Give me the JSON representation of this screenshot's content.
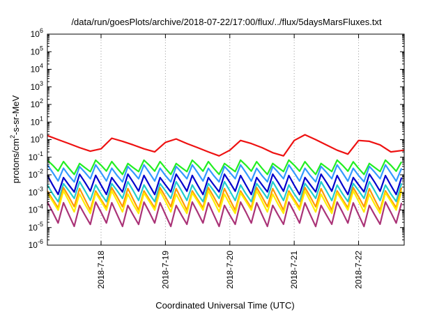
{
  "chart_data": {
    "type": "line",
    "title": "/data/run/goesPlots/archive/2018-07-22/17:00/flux/../flux/5daysMarsFluxes.txt",
    "xlabel": "Coordinated Universal Time (UTC)",
    "ylabel": {
      "prefix": "protons/cm",
      "sup": "2",
      "suffix": "-s-sr-MeV"
    },
    "y_scale": "log",
    "ylim": [
      1e-06,
      1000000.0
    ],
    "y_ticks": [
      {
        "base": "10",
        "exp": "-6"
      },
      {
        "base": "10",
        "exp": "-5"
      },
      {
        "base": "10",
        "exp": "-4"
      },
      {
        "base": "10",
        "exp": "-3"
      },
      {
        "base": "10",
        "exp": "-2"
      },
      {
        "base": "10",
        "exp": "-1"
      },
      {
        "base": "10",
        "exp": "0"
      },
      {
        "base": "10",
        "exp": "1"
      },
      {
        "base": "10",
        "exp": "2"
      },
      {
        "base": "10",
        "exp": "3"
      },
      {
        "base": "10",
        "exp": "4"
      },
      {
        "base": "10",
        "exp": "5"
      },
      {
        "base": "10",
        "exp": "6"
      }
    ],
    "xlim": [
      "2018-07-17 04:00",
      "2018-07-22 17:00"
    ],
    "x_ticks": [
      "2018-7-18",
      "2018-7-19",
      "2018-7-20",
      "2018-7-21",
      "2018-7-22"
    ],
    "x_tick_dates": [
      "2018-07-18",
      "2018-07-19",
      "2018-07-20",
      "2018-07-21",
      "2018-07-22"
    ],
    "grid": {
      "x": true,
      "y": false,
      "style": "dotted"
    },
    "series": [
      {
        "color": "#ee1111",
        "x": [
          "2018-07-17 04:00",
          "2018-07-17 08:00",
          "2018-07-17 12:00",
          "2018-07-17 16:00",
          "2018-07-17 20:00",
          "2018-07-18 00:00",
          "2018-07-18 04:00",
          "2018-07-18 08:00",
          "2018-07-18 12:00",
          "2018-07-18 16:00",
          "2018-07-18 20:00",
          "2018-07-19 00:00",
          "2018-07-19 04:00",
          "2018-07-19 08:00",
          "2018-07-19 12:00",
          "2018-07-19 16:00",
          "2018-07-19 20:00",
          "2018-07-20 00:00",
          "2018-07-20 04:00",
          "2018-07-20 08:00",
          "2018-07-20 12:00",
          "2018-07-20 16:00",
          "2018-07-20 20:00",
          "2018-07-21 00:00",
          "2018-07-21 04:00",
          "2018-07-21 08:00",
          "2018-07-21 12:00",
          "2018-07-21 16:00",
          "2018-07-21 20:00",
          "2018-07-22 00:00",
          "2018-07-22 04:00",
          "2018-07-22 08:00",
          "2018-07-22 12:00",
          "2018-07-22 17:00"
        ],
        "y": [
          1.7,
          1.0,
          0.6,
          0.35,
          0.22,
          0.3,
          1.2,
          0.8,
          0.5,
          0.3,
          0.2,
          0.7,
          1.1,
          0.6,
          0.35,
          0.2,
          0.12,
          0.25,
          0.9,
          0.6,
          0.35,
          0.18,
          0.12,
          0.9,
          1.9,
          1.0,
          0.5,
          0.25,
          0.15,
          0.9,
          0.8,
          0.5,
          0.2,
          0.25
        ]
      },
      {
        "color": "#22ee22",
        "level": 0.028,
        "amp": 2.0
      },
      {
        "color": "#3399ff",
        "level": 0.012,
        "amp": 2.5
      },
      {
        "color": "#0000cc",
        "level": 0.003,
        "amp": 3.0
      },
      {
        "color": "#22cccc",
        "level": 0.0011,
        "amp": 3.0
      },
      {
        "color": "#ff9900",
        "level": 0.00045,
        "amp": 3.5
      },
      {
        "color": "#ffee00",
        "level": 0.00028,
        "amp": 3.5
      },
      {
        "color": "#aa3377",
        "level": 6e-05,
        "amp": 4.0
      }
    ]
  }
}
